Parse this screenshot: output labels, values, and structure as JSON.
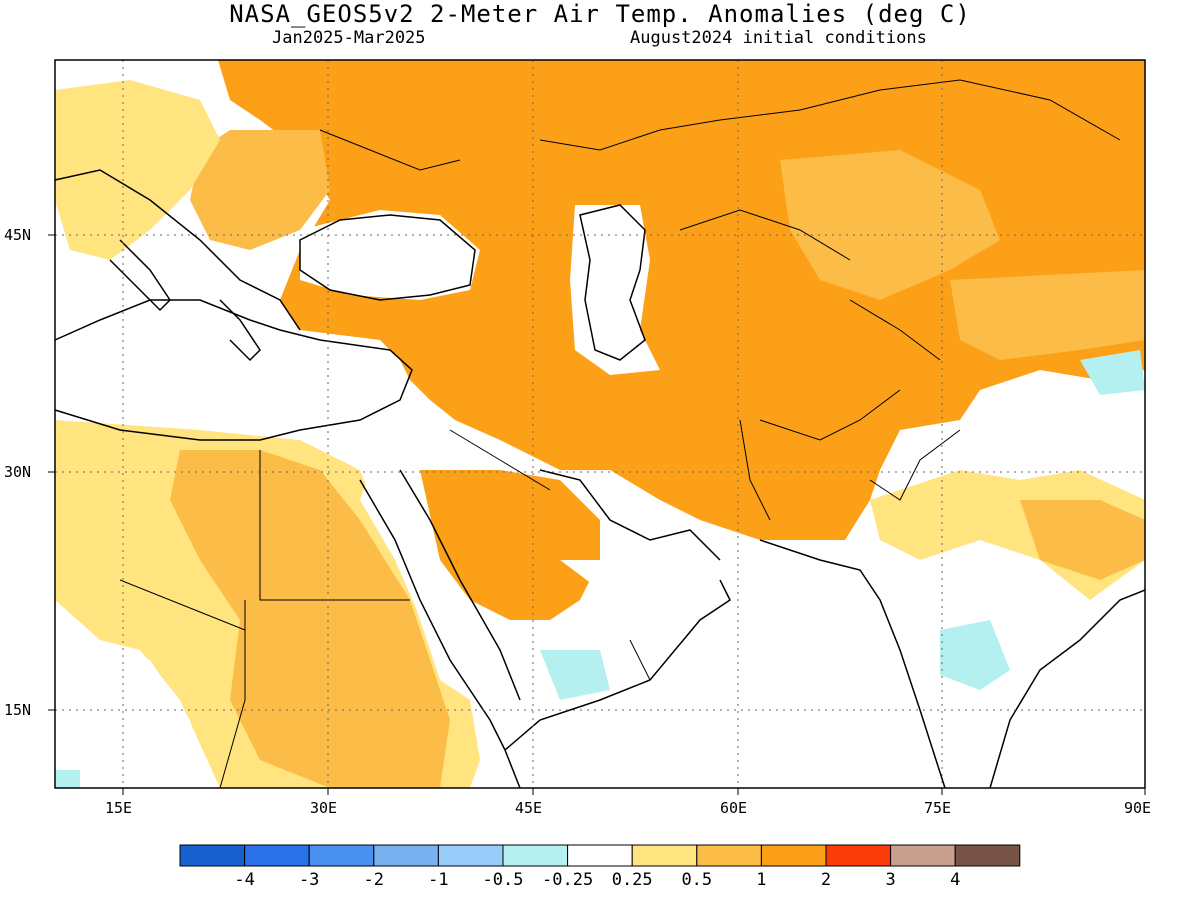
{
  "title": "NASA_GEOS5v2 2-Meter Air Temp. Anomalies (deg C)",
  "subtitle_left": "Jan2025-Mar2025",
  "subtitle_right": "August2024 initial conditions",
  "lon_labels": [
    "15E",
    "30E",
    "45E",
    "60E",
    "75E",
    "90E"
  ],
  "lat_labels": [
    "45N",
    "30N",
    "15N"
  ],
  "colorbar": {
    "colors": [
      "#1860d0",
      "#2a70e8",
      "#4a90f0",
      "#78b0f0",
      "#98ccf8",
      "#b4f0f0",
      "#ffffff",
      "#ffe480",
      "#fcbc48",
      "#fca018",
      "#fc3c08",
      "#c8a090",
      "#785448"
    ],
    "labels": [
      "-4",
      "-3",
      "-2",
      "-1",
      "-0.5",
      "-0.25",
      "0.25",
      "0.5",
      "1",
      "2",
      "3",
      "4"
    ]
  },
  "map_colors": {
    "orange_1_2": "#fca018",
    "light_orange_0_5_1": "#fcbc48",
    "yellow_0_25_0_5": "#ffe480",
    "cyan_neg": "#b4f0f0"
  }
}
